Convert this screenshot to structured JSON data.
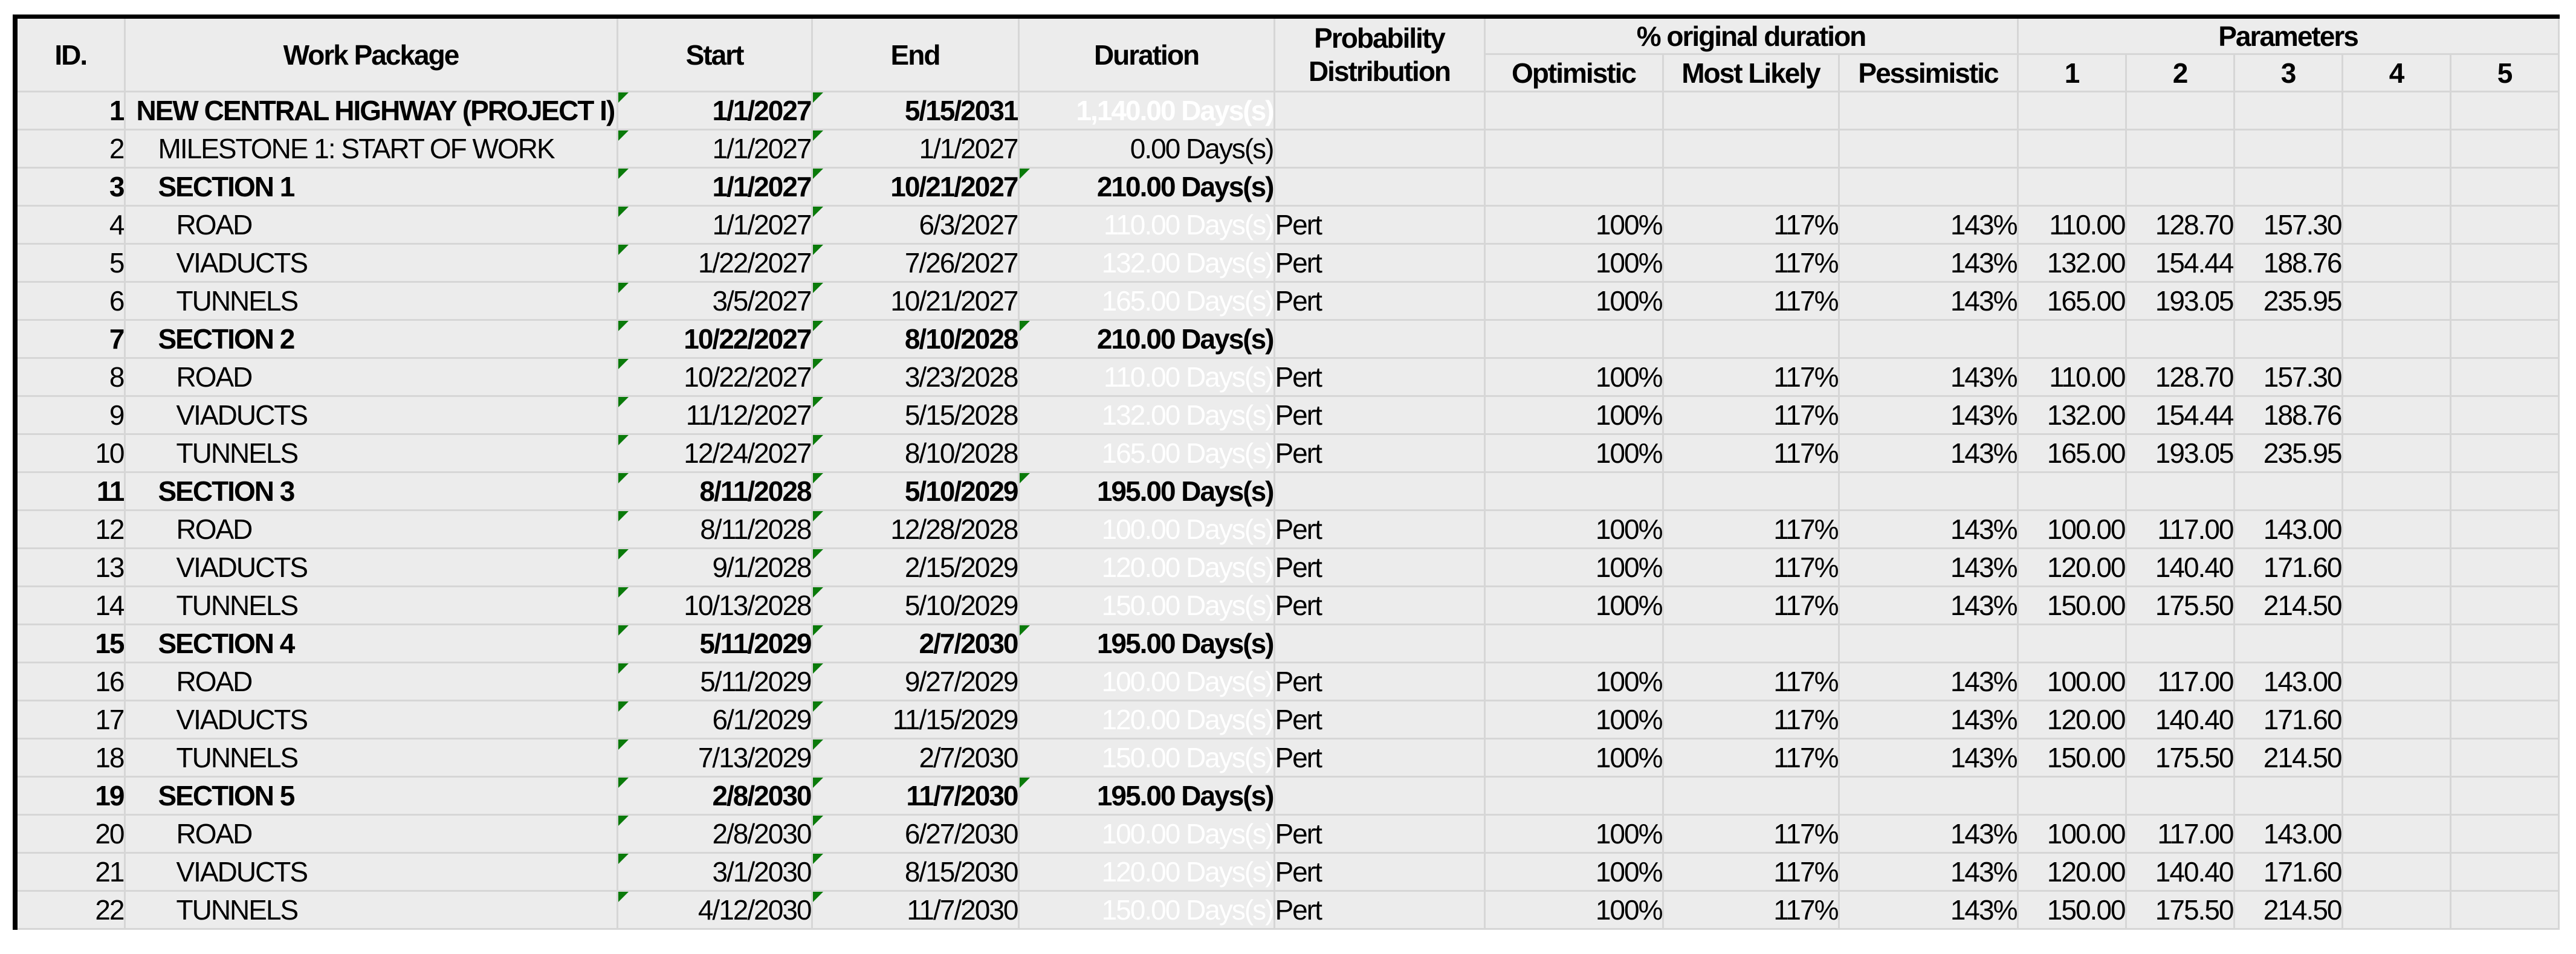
{
  "colors": {
    "bar_blue": "#0000ee",
    "critical_red": "#f2143f",
    "comment_green": "#0a7a0a",
    "cell_grey": "#ececec",
    "gridline": "#d6d6d6",
    "border_black": "#000000"
  },
  "header": {
    "id": "ID.",
    "work_package": "Work Package",
    "start": "Start",
    "end": "End",
    "duration": "Duration",
    "distribution_line1": "Probability",
    "distribution_line2": "Distribution",
    "pct_group": "% original duration",
    "optimistic": "Optimistic",
    "most_likely": "Most Likely",
    "pessimistic": "Pessimistic",
    "params_group": "Parameters",
    "param_numbers": [
      "1",
      "2",
      "3",
      "4",
      "5"
    ]
  },
  "rows": [
    {
      "id": "1",
      "wp": "NEW CENTRAL HIGHWAY (PROJECT I)",
      "level": 1,
      "bold": true,
      "start": "1/1/2027",
      "end": "5/15/2031",
      "dur": "1,140.00 Days(s)",
      "dur_style": "red",
      "dur_tri": false,
      "dist": "",
      "opt": "",
      "ml": "",
      "pess": "",
      "p1": "",
      "p2": "",
      "p3": ""
    },
    {
      "id": "2",
      "wp": "MILESTONE 1: START OF WORK",
      "level": 2,
      "bold": false,
      "start": "1/1/2027",
      "end": "1/1/2027",
      "dur": "0.00 Days(s)",
      "dur_style": "grey",
      "dur_tri": false,
      "dist": "",
      "opt": "",
      "ml": "",
      "pess": "",
      "p1": "",
      "p2": "",
      "p3": ""
    },
    {
      "id": "3",
      "wp": "SECTION 1",
      "level": 2,
      "bold": true,
      "start": "1/1/2027",
      "end": "10/21/2027",
      "dur": "210.00 Days(s)",
      "dur_style": "white",
      "dur_tri": true,
      "dist": "",
      "opt": "",
      "ml": "",
      "pess": "",
      "p1": "",
      "p2": "",
      "p3": ""
    },
    {
      "id": "4",
      "wp": "ROAD",
      "level": 3,
      "bold": false,
      "start": "1/1/2027",
      "end": "6/3/2027",
      "dur": "110.00 Days(s)",
      "dur_style": "bar",
      "dur_tri": false,
      "dist": "Pert",
      "opt": "100%",
      "ml": "117%",
      "pess": "143%",
      "p1": "110.00",
      "p2": "128.70",
      "p3": "157.30"
    },
    {
      "id": "5",
      "wp": "VIADUCTS",
      "level": 3,
      "bold": false,
      "start": "1/22/2027",
      "end": "7/26/2027",
      "dur": "132.00 Days(s)",
      "dur_style": "bar",
      "dur_tri": false,
      "dist": "Pert",
      "opt": "100%",
      "ml": "117%",
      "pess": "143%",
      "p1": "132.00",
      "p2": "154.44",
      "p3": "188.76"
    },
    {
      "id": "6",
      "wp": "TUNNELS",
      "level": 3,
      "bold": false,
      "start": "3/5/2027",
      "end": "10/21/2027",
      "dur": "165.00 Days(s)",
      "dur_style": "bar",
      "dur_tri": false,
      "dist": "Pert",
      "opt": "100%",
      "ml": "117%",
      "pess": "143%",
      "p1": "165.00",
      "p2": "193.05",
      "p3": "235.95"
    },
    {
      "id": "7",
      "wp": "SECTION 2",
      "level": 2,
      "bold": true,
      "start": "10/22/2027",
      "end": "8/10/2028",
      "dur": "210.00 Days(s)",
      "dur_style": "white",
      "dur_tri": true,
      "dist": "",
      "opt": "",
      "ml": "",
      "pess": "",
      "p1": "",
      "p2": "",
      "p3": ""
    },
    {
      "id": "8",
      "wp": "ROAD",
      "level": 3,
      "bold": false,
      "start": "10/22/2027",
      "end": "3/23/2028",
      "dur": "110.00 Days(s)",
      "dur_style": "bar",
      "dur_tri": false,
      "dist": "Pert",
      "opt": "100%",
      "ml": "117%",
      "pess": "143%",
      "p1": "110.00",
      "p2": "128.70",
      "p3": "157.30"
    },
    {
      "id": "9",
      "wp": "VIADUCTS",
      "level": 3,
      "bold": false,
      "start": "11/12/2027",
      "end": "5/15/2028",
      "dur": "132.00 Days(s)",
      "dur_style": "bar",
      "dur_tri": false,
      "dist": "Pert",
      "opt": "100%",
      "ml": "117%",
      "pess": "143%",
      "p1": "132.00",
      "p2": "154.44",
      "p3": "188.76"
    },
    {
      "id": "10",
      "wp": "TUNNELS",
      "level": 3,
      "bold": false,
      "start": "12/24/2027",
      "end": "8/10/2028",
      "dur": "165.00 Days(s)",
      "dur_style": "bar",
      "dur_tri": false,
      "dist": "Pert",
      "opt": "100%",
      "ml": "117%",
      "pess": "143%",
      "p1": "165.00",
      "p2": "193.05",
      "p3": "235.95"
    },
    {
      "id": "11",
      "wp": "SECTION 3",
      "level": 2,
      "bold": true,
      "start": "8/11/2028",
      "end": "5/10/2029",
      "dur": "195.00 Days(s)",
      "dur_style": "white",
      "dur_tri": true,
      "dist": "",
      "opt": "",
      "ml": "",
      "pess": "",
      "p1": "",
      "p2": "",
      "p3": ""
    },
    {
      "id": "12",
      "wp": "ROAD",
      "level": 3,
      "bold": false,
      "start": "8/11/2028",
      "end": "12/28/2028",
      "dur": "100.00 Days(s)",
      "dur_style": "bar",
      "dur_tri": false,
      "dist": "Pert",
      "opt": "100%",
      "ml": "117%",
      "pess": "143%",
      "p1": "100.00",
      "p2": "117.00",
      "p3": "143.00"
    },
    {
      "id": "13",
      "wp": "VIADUCTS",
      "level": 3,
      "bold": false,
      "start": "9/1/2028",
      "end": "2/15/2029",
      "dur": "120.00 Days(s)",
      "dur_style": "bar",
      "dur_tri": false,
      "dist": "Pert",
      "opt": "100%",
      "ml": "117%",
      "pess": "143%",
      "p1": "120.00",
      "p2": "140.40",
      "p3": "171.60"
    },
    {
      "id": "14",
      "wp": "TUNNELS",
      "level": 3,
      "bold": false,
      "start": "10/13/2028",
      "end": "5/10/2029",
      "dur": "150.00 Days(s)",
      "dur_style": "bar",
      "dur_tri": false,
      "dist": "Pert",
      "opt": "100%",
      "ml": "117%",
      "pess": "143%",
      "p1": "150.00",
      "p2": "175.50",
      "p3": "214.50"
    },
    {
      "id": "15",
      "wp": "SECTION 4",
      "level": 2,
      "bold": true,
      "start": "5/11/2029",
      "end": "2/7/2030",
      "dur": "195.00 Days(s)",
      "dur_style": "white",
      "dur_tri": true,
      "dist": "",
      "opt": "",
      "ml": "",
      "pess": "",
      "p1": "",
      "p2": "",
      "p3": ""
    },
    {
      "id": "16",
      "wp": "ROAD",
      "level": 3,
      "bold": false,
      "start": "5/11/2029",
      "end": "9/27/2029",
      "dur": "100.00 Days(s)",
      "dur_style": "bar",
      "dur_tri": false,
      "dist": "Pert",
      "opt": "100%",
      "ml": "117%",
      "pess": "143%",
      "p1": "100.00",
      "p2": "117.00",
      "p3": "143.00"
    },
    {
      "id": "17",
      "wp": "VIADUCTS",
      "level": 3,
      "bold": false,
      "start": "6/1/2029",
      "end": "11/15/2029",
      "dur": "120.00 Days(s)",
      "dur_style": "bar",
      "dur_tri": false,
      "dist": "Pert",
      "opt": "100%",
      "ml": "117%",
      "pess": "143%",
      "p1": "120.00",
      "p2": "140.40",
      "p3": "171.60"
    },
    {
      "id": "18",
      "wp": "TUNNELS",
      "level": 3,
      "bold": false,
      "start": "7/13/2029",
      "end": "2/7/2030",
      "dur": "150.00 Days(s)",
      "dur_style": "bar",
      "dur_tri": false,
      "dist": "Pert",
      "opt": "100%",
      "ml": "117%",
      "pess": "143%",
      "p1": "150.00",
      "p2": "175.50",
      "p3": "214.50"
    },
    {
      "id": "19",
      "wp": "SECTION 5",
      "level": 2,
      "bold": true,
      "start": "2/8/2030",
      "end": "11/7/2030",
      "dur": "195.00 Days(s)",
      "dur_style": "white",
      "dur_tri": true,
      "dist": "",
      "opt": "",
      "ml": "",
      "pess": "",
      "p1": "",
      "p2": "",
      "p3": ""
    },
    {
      "id": "20",
      "wp": "ROAD",
      "level": 3,
      "bold": false,
      "start": "2/8/2030",
      "end": "6/27/2030",
      "dur": "100.00 Days(s)",
      "dur_style": "bar",
      "dur_tri": false,
      "dist": "Pert",
      "opt": "100%",
      "ml": "117%",
      "pess": "143%",
      "p1": "100.00",
      "p2": "117.00",
      "p3": "143.00"
    },
    {
      "id": "21",
      "wp": "VIADUCTS",
      "level": 3,
      "bold": false,
      "start": "3/1/2030",
      "end": "8/15/2030",
      "dur": "120.00 Days(s)",
      "dur_style": "bar",
      "dur_tri": false,
      "dist": "Pert",
      "opt": "100%",
      "ml": "117%",
      "pess": "143%",
      "p1": "120.00",
      "p2": "140.40",
      "p3": "171.60"
    },
    {
      "id": "22",
      "wp": "TUNNELS",
      "level": 3,
      "bold": false,
      "start": "4/12/2030",
      "end": "11/7/2030",
      "dur": "150.00 Days(s)",
      "dur_style": "bar",
      "dur_tri": false,
      "dist": "Pert",
      "opt": "100%",
      "ml": "117%",
      "pess": "143%",
      "p1": "150.00",
      "p2": "175.50",
      "p3": "214.50"
    }
  ]
}
